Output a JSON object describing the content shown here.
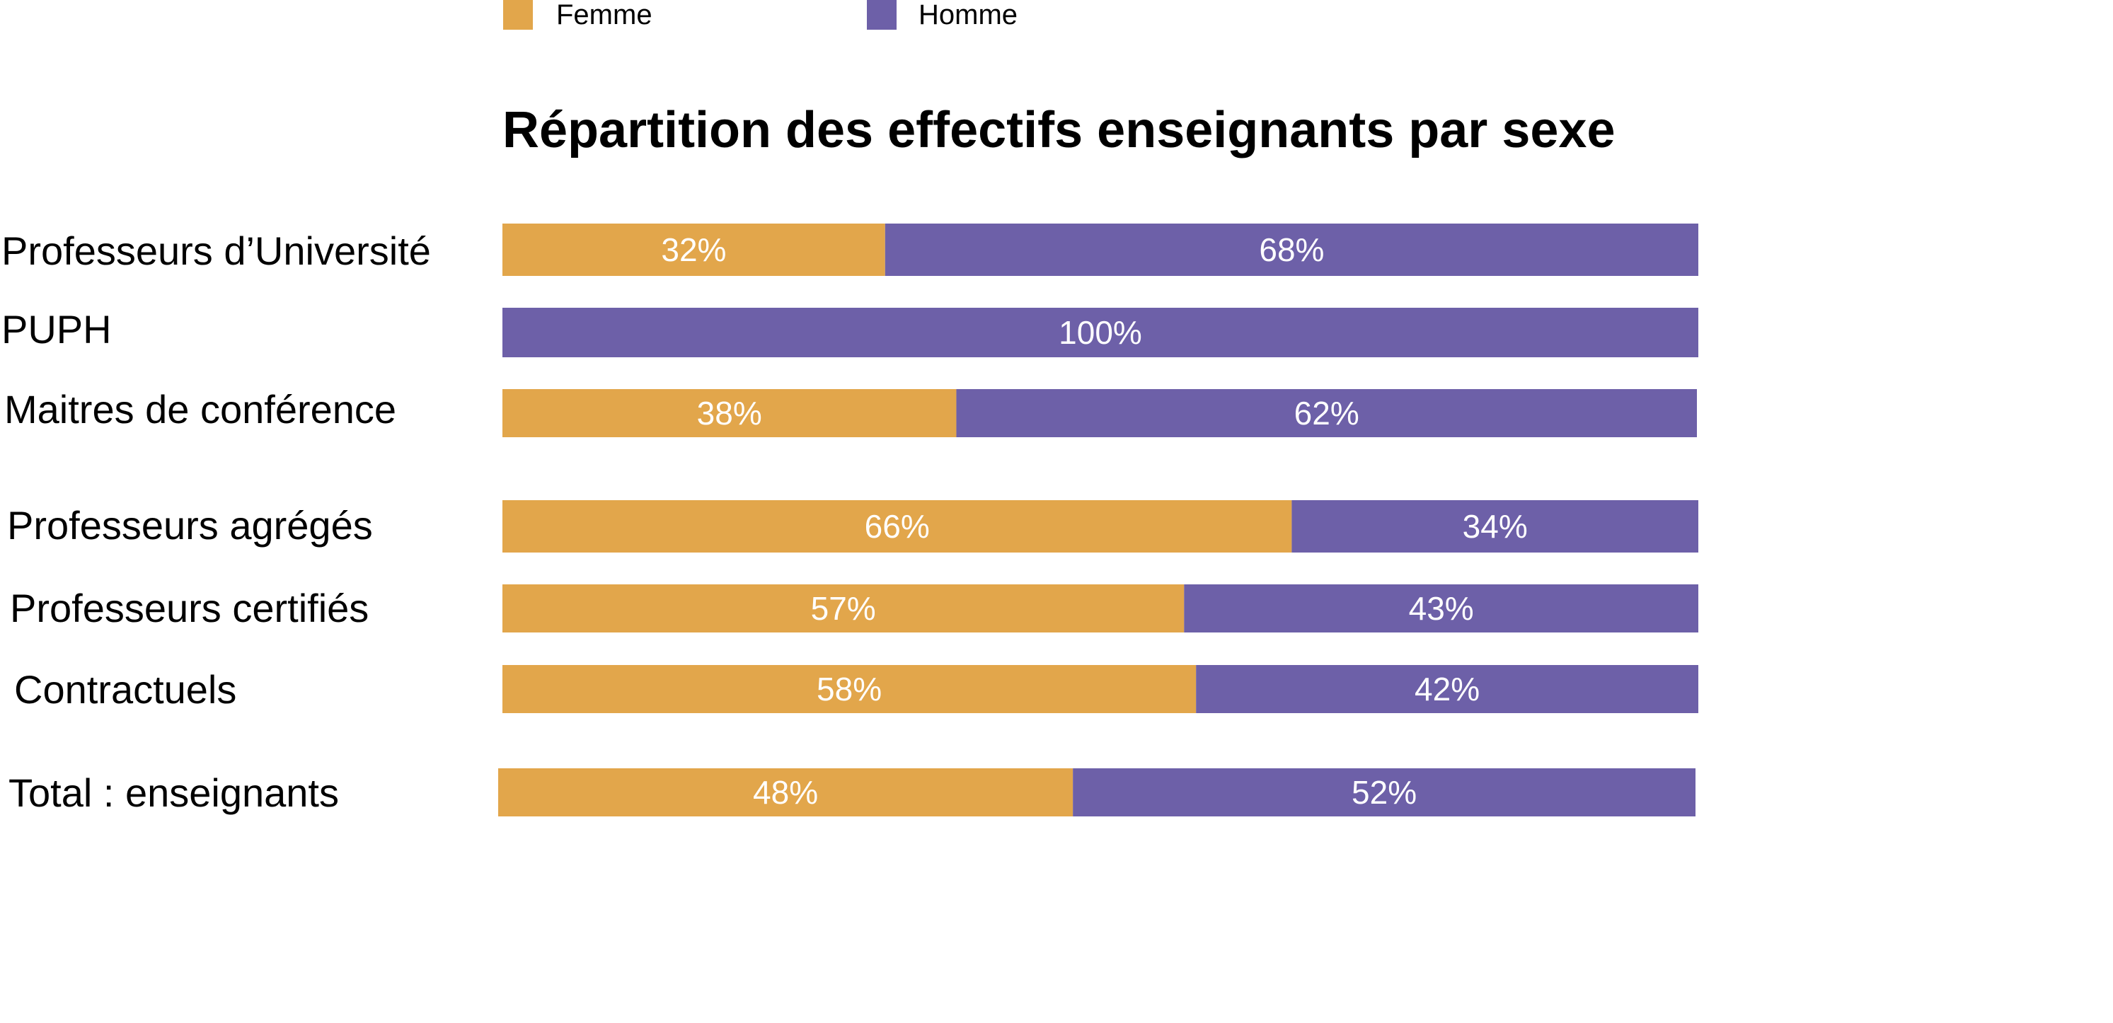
{
  "chart_data": {
    "type": "bar",
    "orientation": "horizontal",
    "stacked": true,
    "title": "Répartition des effectifs enseignants par sexe",
    "categories": [
      "Professeurs d’Université",
      "PUPH",
      "Maitres de conférence",
      "Professeurs agrégés",
      "Professeurs certifiés",
      "Contractuels",
      "Total : enseignants"
    ],
    "series": [
      {
        "name": "Femme",
        "color": "#E2A64B",
        "values": [
          32,
          0,
          38,
          66,
          57,
          58,
          48
        ],
        "labels": [
          "32%",
          "",
          "38%",
          "66%",
          "57%",
          "58%",
          "48%"
        ]
      },
      {
        "name": "Homme",
        "color": "#6D60A8",
        "values": [
          68,
          100,
          62,
          34,
          43,
          42,
          52
        ],
        "labels": [
          "68%",
          "100%",
          "62%",
          "34%",
          "43%",
          "42%",
          "52%"
        ]
      }
    ],
    "xlim": [
      0,
      100
    ],
    "grid": false,
    "legend": "top-left"
  }
}
